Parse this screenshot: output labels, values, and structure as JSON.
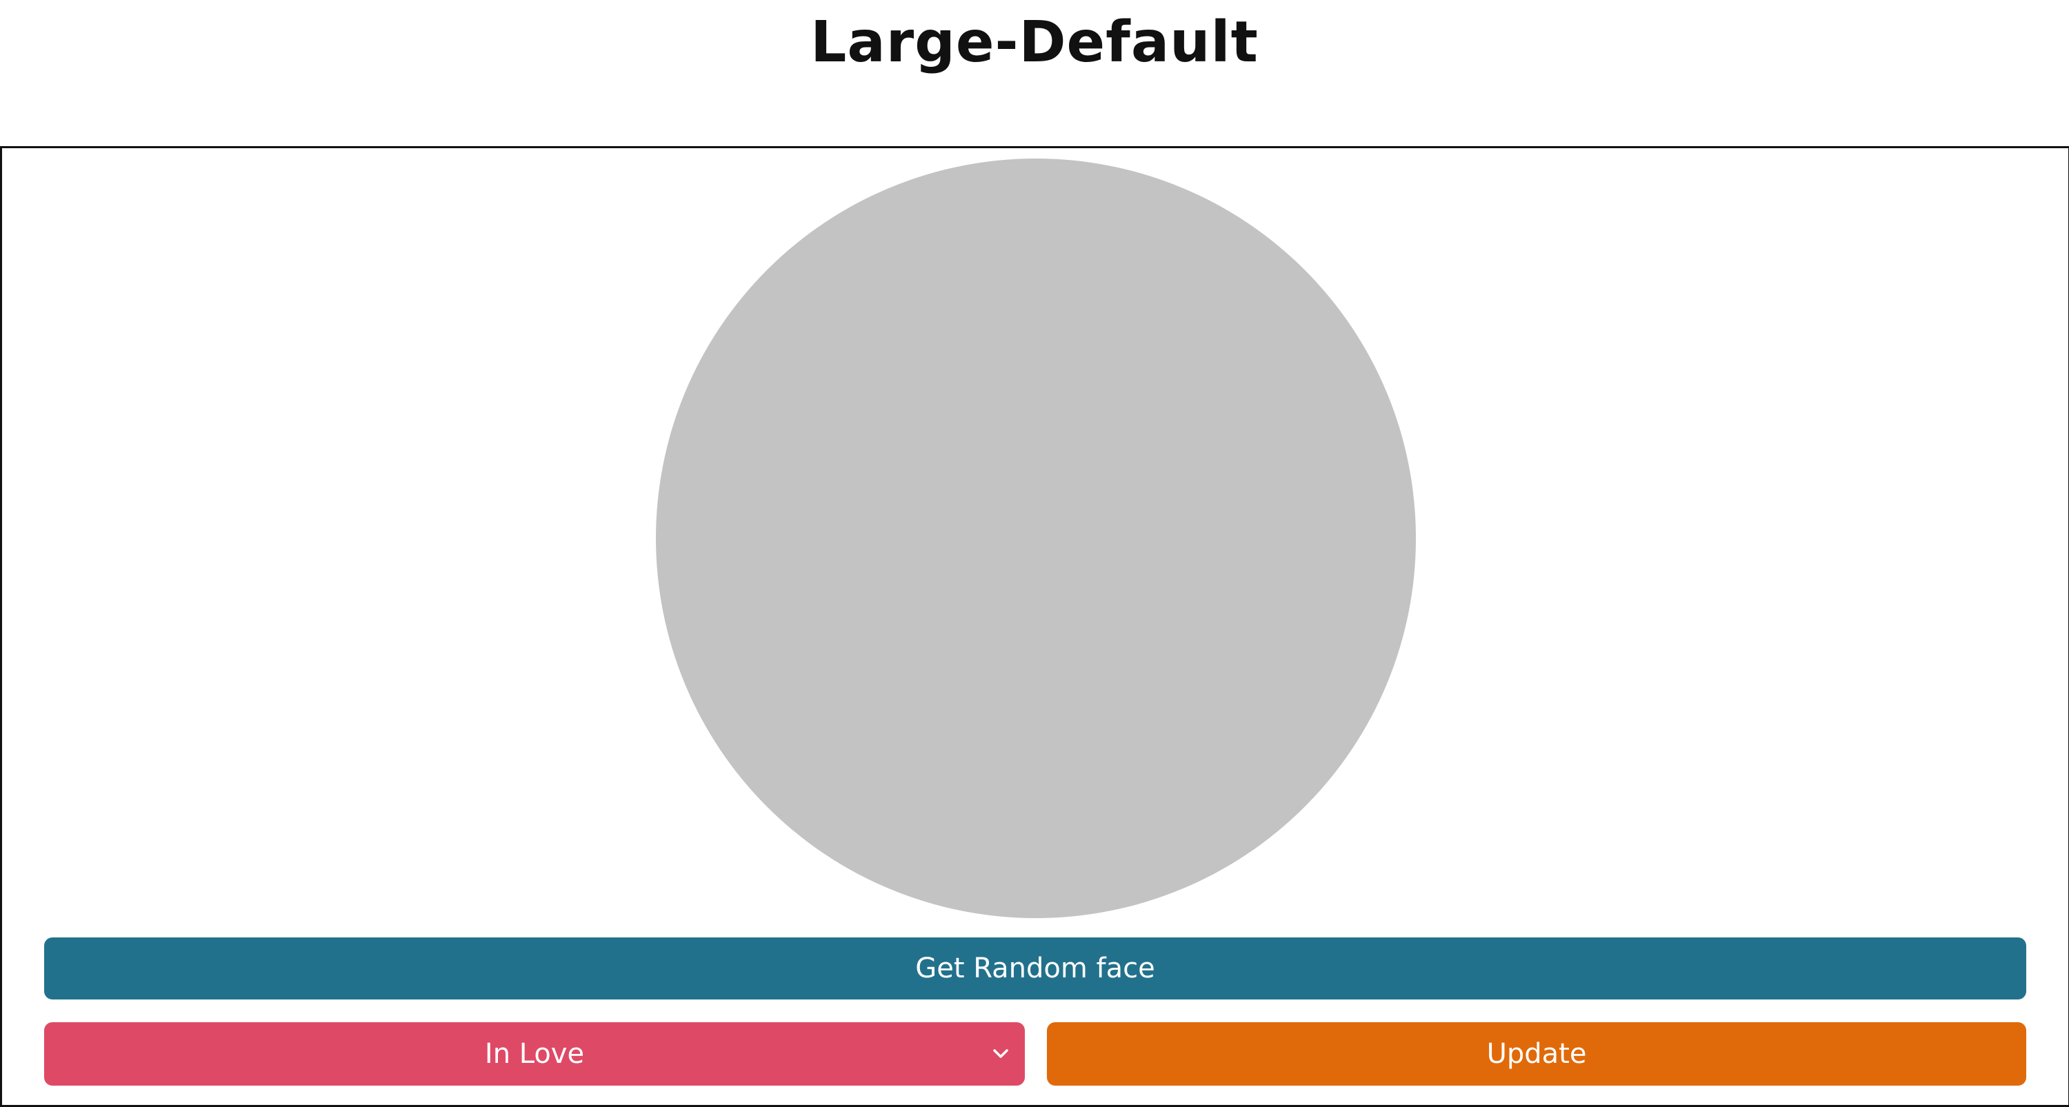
{
  "header": {
    "title": "Large-Default"
  },
  "controls": {
    "random_label": "Get Random face",
    "mood_selected": "In Love",
    "update_label": "Update"
  },
  "colors": {
    "face": "#c3c3c3",
    "random_button": "#22718c",
    "mood_select": "#de4a66",
    "update_button": "#e06a0a"
  },
  "icons": {
    "select_arrow": "chevron-down-icon"
  }
}
